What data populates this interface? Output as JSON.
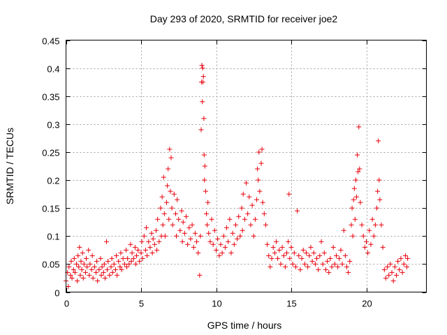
{
  "chart_data": {
    "type": "scatter",
    "title": "Day 293 of 2020, SRMTID for receiver joe2",
    "xlabel": "GPS time / hours",
    "ylabel": "SRMTID / TECUs",
    "xlim": [
      0,
      24
    ],
    "ylim": [
      0,
      0.45
    ],
    "xticks": [
      0,
      5,
      10,
      15,
      20
    ],
    "xtick_labels": [
      "0",
      "5",
      "10",
      "15",
      "20"
    ],
    "yticks": [
      0,
      0.05,
      0.1,
      0.15,
      0.2,
      0.25,
      0.3,
      0.35,
      0.4,
      0.45
    ],
    "ytick_labels": [
      "0",
      "0.05",
      "0.1",
      "0.15",
      "0.2",
      "0.25",
      "0.3",
      "0.35",
      "0.4",
      "0.45"
    ],
    "grid": true,
    "marker": "plus",
    "color": "#e8000b",
    "series": [
      {
        "name": "SRMTID",
        "points": [
          [
            0.0,
            0.02
          ],
          [
            0.1,
            0.035
          ],
          [
            0.15,
            0.01
          ],
          [
            0.2,
            0.045
          ],
          [
            0.3,
            0.03
          ],
          [
            0.35,
            0.055
          ],
          [
            0.4,
            0.025
          ],
          [
            0.5,
            0.04
          ],
          [
            0.55,
            0.06
          ],
          [
            0.6,
            0.035
          ],
          [
            0.7,
            0.05
          ],
          [
            0.75,
            0.02
          ],
          [
            0.8,
            0.065
          ],
          [
            0.85,
            0.045
          ],
          [
            0.9,
            0.08
          ],
          [
            0.95,
            0.03
          ],
          [
            1.0,
            0.055
          ],
          [
            1.05,
            0.04
          ],
          [
            1.1,
            0.07
          ],
          [
            1.15,
            0.025
          ],
          [
            1.2,
            0.05
          ],
          [
            1.3,
            0.035
          ],
          [
            1.35,
            0.06
          ],
          [
            1.4,
            0.045
          ],
          [
            1.5,
            0.075
          ],
          [
            1.55,
            0.03
          ],
          [
            1.6,
            0.05
          ],
          [
            1.7,
            0.04
          ],
          [
            1.75,
            0.065
          ],
          [
            1.8,
            0.025
          ],
          [
            1.9,
            0.045
          ],
          [
            2.0,
            0.035
          ],
          [
            2.05,
            0.055
          ],
          [
            2.1,
            0.02
          ],
          [
            2.2,
            0.04
          ],
          [
            2.3,
            0.06
          ],
          [
            2.35,
            0.03
          ],
          [
            2.4,
            0.045
          ],
          [
            2.5,
            0.035
          ],
          [
            2.55,
            0.05
          ],
          [
            2.6,
            0.025
          ],
          [
            2.7,
            0.09
          ],
          [
            2.75,
            0.04
          ],
          [
            2.8,
            0.055
          ],
          [
            2.9,
            0.03
          ],
          [
            3.0,
            0.045
          ],
          [
            3.05,
            0.06
          ],
          [
            3.1,
            0.035
          ],
          [
            3.2,
            0.05
          ],
          [
            3.3,
            0.04
          ],
          [
            3.35,
            0.065
          ],
          [
            3.4,
            0.03
          ],
          [
            3.5,
            0.055
          ],
          [
            3.6,
            0.045
          ],
          [
            3.65,
            0.07
          ],
          [
            3.7,
            0.04
          ],
          [
            3.8,
            0.06
          ],
          [
            3.9,
            0.05
          ],
          [
            4.0,
            0.075
          ],
          [
            4.05,
            0.045
          ],
          [
            4.1,
            0.06
          ],
          [
            4.2,
            0.05
          ],
          [
            4.3,
            0.085
          ],
          [
            4.35,
            0.055
          ],
          [
            4.4,
            0.07
          ],
          [
            4.5,
            0.06
          ],
          [
            4.6,
            0.08
          ],
          [
            4.65,
            0.05
          ],
          [
            4.7,
            0.065
          ],
          [
            4.8,
            0.075
          ],
          [
            4.9,
            0.055
          ],
          [
            5.0,
            0.07
          ],
          [
            5.05,
            0.09
          ],
          [
            5.1,
            0.06
          ],
          [
            5.2,
            0.1
          ],
          [
            5.3,
            0.075
          ],
          [
            5.35,
            0.115
          ],
          [
            5.4,
            0.065
          ],
          [
            5.5,
            0.09
          ],
          [
            5.6,
            0.08
          ],
          [
            5.7,
            0.105
          ],
          [
            5.75,
            0.07
          ],
          [
            5.8,
            0.095
          ],
          [
            5.9,
            0.085
          ],
          [
            6.0,
            0.11
          ],
          [
            6.05,
            0.075
          ],
          [
            6.1,
            0.13
          ],
          [
            6.2,
            0.09
          ],
          [
            6.3,
            0.15
          ],
          [
            6.35,
            0.1
          ],
          [
            6.4,
            0.17
          ],
          [
            6.45,
            0.12
          ],
          [
            6.5,
            0.205
          ],
          [
            6.55,
            0.14
          ],
          [
            6.6,
            0.1
          ],
          [
            6.7,
            0.16
          ],
          [
            6.75,
            0.19
          ],
          [
            6.8,
            0.22
          ],
          [
            6.85,
            0.13
          ],
          [
            6.9,
            0.255
          ],
          [
            6.95,
            0.18
          ],
          [
            7.0,
            0.24
          ],
          [
            7.05,
            0.15
          ],
          [
            7.1,
            0.12
          ],
          [
            7.2,
            0.175
          ],
          [
            7.3,
            0.14
          ],
          [
            7.35,
            0.1
          ],
          [
            7.4,
            0.165
          ],
          [
            7.5,
            0.13
          ],
          [
            7.6,
            0.11
          ],
          [
            7.7,
            0.145
          ],
          [
            7.75,
            0.09
          ],
          [
            7.8,
            0.125
          ],
          [
            7.9,
            0.105
          ],
          [
            8.0,
            0.135
          ],
          [
            8.1,
            0.085
          ],
          [
            8.2,
            0.115
          ],
          [
            8.3,
            0.095
          ],
          [
            8.4,
            0.12
          ],
          [
            8.5,
            0.08
          ],
          [
            8.6,
            0.105
          ],
          [
            8.7,
            0.09
          ],
          [
            8.8,
            0.07
          ],
          [
            8.9,
            0.03
          ],
          [
            8.95,
            0.1
          ],
          [
            9.0,
            0.29
          ],
          [
            9.02,
            0.375
          ],
          [
            9.05,
            0.405
          ],
          [
            9.08,
            0.34
          ],
          [
            9.1,
            0.4
          ],
          [
            9.12,
            0.375
          ],
          [
            9.15,
            0.385
          ],
          [
            9.18,
            0.31
          ],
          [
            9.2,
            0.245
          ],
          [
            9.22,
            0.2
          ],
          [
            9.25,
            0.225
          ],
          [
            9.3,
            0.18
          ],
          [
            9.35,
            0.14
          ],
          [
            9.4,
            0.12
          ],
          [
            9.45,
            0.16
          ],
          [
            9.5,
            0.105
          ],
          [
            9.6,
            0.09
          ],
          [
            9.7,
            0.13
          ],
          [
            9.8,
            0.085
          ],
          [
            9.9,
            0.11
          ],
          [
            10.0,
            0.075
          ],
          [
            10.1,
            0.095
          ],
          [
            10.2,
            0.065
          ],
          [
            10.3,
            0.085
          ],
          [
            10.4,
            0.07
          ],
          [
            10.5,
            0.1
          ],
          [
            10.6,
            0.08
          ],
          [
            10.7,
            0.115
          ],
          [
            10.8,
            0.09
          ],
          [
            10.9,
            0.13
          ],
          [
            11.0,
            0.07
          ],
          [
            11.1,
            0.105
          ],
          [
            11.2,
            0.085
          ],
          [
            11.3,
            0.12
          ],
          [
            11.4,
            0.095
          ],
          [
            11.5,
            0.135
          ],
          [
            11.6,
            0.1
          ],
          [
            11.7,
            0.15
          ],
          [
            11.75,
            0.11
          ],
          [
            11.8,
            0.175
          ],
          [
            11.9,
            0.13
          ],
          [
            12.0,
            0.195
          ],
          [
            12.1,
            0.14
          ],
          [
            12.2,
            0.17
          ],
          [
            12.3,
            0.12
          ],
          [
            12.4,
            0.155
          ],
          [
            12.5,
            0.1
          ],
          [
            12.6,
            0.13
          ],
          [
            12.7,
            0.165
          ],
          [
            12.75,
            0.22
          ],
          [
            12.8,
            0.2
          ],
          [
            12.85,
            0.25
          ],
          [
            12.9,
            0.18
          ],
          [
            13.0,
            0.23
          ],
          [
            13.05,
            0.255
          ],
          [
            13.1,
            0.16
          ],
          [
            13.2,
            0.14
          ],
          [
            13.3,
            0.12
          ],
          [
            13.4,
            0.085
          ],
          [
            13.5,
            0.065
          ],
          [
            13.6,
            0.045
          ],
          [
            13.7,
            0.06
          ],
          [
            13.8,
            0.08
          ],
          [
            13.9,
            0.07
          ],
          [
            14.0,
            0.09
          ],
          [
            14.1,
            0.06
          ],
          [
            14.2,
            0.075
          ],
          [
            14.3,
            0.05
          ],
          [
            14.4,
            0.08
          ],
          [
            14.5,
            0.065
          ],
          [
            14.6,
            0.045
          ],
          [
            14.7,
            0.07
          ],
          [
            14.8,
            0.09
          ],
          [
            14.85,
            0.175
          ],
          [
            14.9,
            0.06
          ],
          [
            15.0,
            0.08
          ],
          [
            15.1,
            0.05
          ],
          [
            15.2,
            0.07
          ],
          [
            15.3,
            0.045
          ],
          [
            15.4,
            0.145
          ],
          [
            15.5,
            0.065
          ],
          [
            15.6,
            0.04
          ],
          [
            15.7,
            0.06
          ],
          [
            15.8,
            0.075
          ],
          [
            15.9,
            0.05
          ],
          [
            16.0,
            0.07
          ],
          [
            16.1,
            0.045
          ],
          [
            16.2,
            0.065
          ],
          [
            16.3,
            0.08
          ],
          [
            16.4,
            0.055
          ],
          [
            16.5,
            0.07
          ],
          [
            16.6,
            0.05
          ],
          [
            16.7,
            0.06
          ],
          [
            16.8,
            0.04
          ],
          [
            16.9,
            0.065
          ],
          [
            17.0,
            0.09
          ],
          [
            17.1,
            0.05
          ],
          [
            17.2,
            0.07
          ],
          [
            17.3,
            0.04
          ],
          [
            17.4,
            0.055
          ],
          [
            17.5,
            0.035
          ],
          [
            17.6,
            0.06
          ],
          [
            17.7,
            0.045
          ],
          [
            17.8,
            0.08
          ],
          [
            17.9,
            0.05
          ],
          [
            18.0,
            0.065
          ],
          [
            18.1,
            0.045
          ],
          [
            18.2,
            0.06
          ],
          [
            18.3,
            0.075
          ],
          [
            18.4,
            0.05
          ],
          [
            18.5,
            0.11
          ],
          [
            18.6,
            0.065
          ],
          [
            18.7,
            0.045
          ],
          [
            18.8,
            0.035
          ],
          [
            18.9,
            0.055
          ],
          [
            19.0,
            0.12
          ],
          [
            19.05,
            0.15
          ],
          [
            19.1,
            0.1
          ],
          [
            19.15,
            0.165
          ],
          [
            19.2,
            0.185
          ],
          [
            19.25,
            0.13
          ],
          [
            19.3,
            0.2
          ],
          [
            19.35,
            0.17
          ],
          [
            19.4,
            0.245
          ],
          [
            19.45,
            0.215
          ],
          [
            19.5,
            0.295
          ],
          [
            19.55,
            0.22
          ],
          [
            19.6,
            0.16
          ],
          [
            19.7,
            0.12
          ],
          [
            19.8,
            0.1
          ],
          [
            19.9,
            0.08
          ],
          [
            20.0,
            0.09
          ],
          [
            20.1,
            0.07
          ],
          [
            20.2,
            0.11
          ],
          [
            20.3,
            0.085
          ],
          [
            20.4,
            0.13
          ],
          [
            20.5,
            0.1
          ],
          [
            20.6,
            0.12
          ],
          [
            20.7,
            0.15
          ],
          [
            20.75,
            0.18
          ],
          [
            20.8,
            0.27
          ],
          [
            20.85,
            0.2
          ],
          [
            20.9,
            0.165
          ],
          [
            21.0,
            0.12
          ],
          [
            21.1,
            0.08
          ],
          [
            21.2,
            0.04
          ],
          [
            21.3,
            0.025
          ],
          [
            21.4,
            0.045
          ],
          [
            21.5,
            0.03
          ],
          [
            21.6,
            0.05
          ],
          [
            21.7,
            0.035
          ],
          [
            21.8,
            0.02
          ],
          [
            21.9,
            0.045
          ],
          [
            22.0,
            0.03
          ],
          [
            22.1,
            0.055
          ],
          [
            22.2,
            0.04
          ],
          [
            22.3,
            0.06
          ],
          [
            22.4,
            0.035
          ],
          [
            22.5,
            0.05
          ],
          [
            22.6,
            0.065
          ],
          [
            22.7,
            0.045
          ],
          [
            22.75,
            0.06
          ]
        ]
      }
    ]
  }
}
